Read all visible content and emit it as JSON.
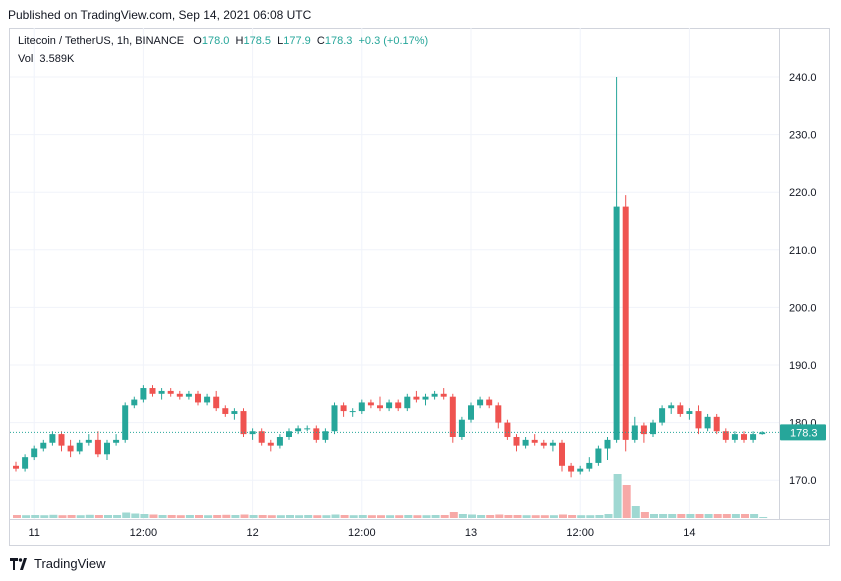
{
  "header": {
    "published": "Published on TradingView.com, Sep 14, 2021 06:08 UTC"
  },
  "legend": {
    "symbol": "Litecoin / TetherUS, 1h, BINANCE",
    "o_label": "O",
    "o_value": "178.0",
    "h_label": "H",
    "h_value": "178.5",
    "l_label": "L",
    "l_value": "177.9",
    "c_label": "C",
    "c_value": "178.3",
    "change": "+0.3 (+0.17%)",
    "vol_label": "Vol",
    "vol_value": "3.589K"
  },
  "footer": {
    "brand": "TradingView"
  },
  "colors": {
    "up": "#26a69a",
    "down": "#ef5350",
    "up_vol": "#9fd8d2",
    "down_vol": "#f7a9a7",
    "grid": "#f0f3fa"
  },
  "chart_data": {
    "type": "candlestick",
    "y_ticks": [
      "240.0",
      "230.0",
      "220.0",
      "210.0",
      "200.0",
      "190.0",
      "180.0",
      "170.0"
    ],
    "ylim": [
      164,
      245
    ],
    "x_ticks": [
      {
        "label": "11",
        "index": 2
      },
      {
        "label": "12:00",
        "index": 14
      },
      {
        "label": "12",
        "index": 26
      },
      {
        "label": "12:00",
        "index": 38
      },
      {
        "label": "13",
        "index": 50
      },
      {
        "label": "12:00",
        "index": 62
      },
      {
        "label": "14",
        "index": 74
      }
    ],
    "last_price": "178.3",
    "candles": [
      [
        172.5,
        173.2,
        171.5,
        172.0
      ],
      [
        172.0,
        174.5,
        171.5,
        174.0
      ],
      [
        174.0,
        176.0,
        173.5,
        175.5
      ],
      [
        175.5,
        177.0,
        175.0,
        176.5
      ],
      [
        176.5,
        178.5,
        176.0,
        178.0
      ],
      [
        178.0,
        178.5,
        175.0,
        176.0
      ],
      [
        176.0,
        177.0,
        174.0,
        175.0
      ],
      [
        175.0,
        177.0,
        174.5,
        176.5
      ],
      [
        176.5,
        178.0,
        176.0,
        177.0
      ],
      [
        177.0,
        178.5,
        174.0,
        174.5
      ],
      [
        174.5,
        177.0,
        173.5,
        176.5
      ],
      [
        176.5,
        178.0,
        176.0,
        177.0
      ],
      [
        177.0,
        183.5,
        176.5,
        183.0
      ],
      [
        183.0,
        184.5,
        182.5,
        184.0
      ],
      [
        184.0,
        186.5,
        183.5,
        186.0
      ],
      [
        186.0,
        186.5,
        184.5,
        185.0
      ],
      [
        185.0,
        186.0,
        184.0,
        185.5
      ],
      [
        185.5,
        186.0,
        184.5,
        185.0
      ],
      [
        185.0,
        185.5,
        184.0,
        184.5
      ],
      [
        184.5,
        185.5,
        184.0,
        185.0
      ],
      [
        185.0,
        185.5,
        183.0,
        183.5
      ],
      [
        183.5,
        185.0,
        183.0,
        184.5
      ],
      [
        184.5,
        185.5,
        182.0,
        182.5
      ],
      [
        182.5,
        183.0,
        181.0,
        181.5
      ],
      [
        181.5,
        182.5,
        180.5,
        182.0
      ],
      [
        182.0,
        182.5,
        177.5,
        178.0
      ],
      [
        178.0,
        179.0,
        177.0,
        178.5
      ],
      [
        178.5,
        179.0,
        176.0,
        176.5
      ],
      [
        176.5,
        177.0,
        175.0,
        176.0
      ],
      [
        176.0,
        178.0,
        175.5,
        177.5
      ],
      [
        177.5,
        179.0,
        177.0,
        178.5
      ],
      [
        178.5,
        179.5,
        178.0,
        179.0
      ],
      [
        179.0,
        179.5,
        178.5,
        179.0
      ],
      [
        179.0,
        179.5,
        176.5,
        177.0
      ],
      [
        177.0,
        179.0,
        176.5,
        178.5
      ],
      [
        178.5,
        183.5,
        178.0,
        183.0
      ],
      [
        183.0,
        183.5,
        181.0,
        182.0
      ],
      [
        182.0,
        182.5,
        181.0,
        182.0
      ],
      [
        182.0,
        184.0,
        181.5,
        183.5
      ],
      [
        183.5,
        184.0,
        182.5,
        183.0
      ],
      [
        183.0,
        184.5,
        182.0,
        182.5
      ],
      [
        182.5,
        184.0,
        182.0,
        183.5
      ],
      [
        183.5,
        184.0,
        182.0,
        182.5
      ],
      [
        182.5,
        185.0,
        182.0,
        184.5
      ],
      [
        184.5,
        185.5,
        183.5,
        184.0
      ],
      [
        184.0,
        185.0,
        183.0,
        184.5
      ],
      [
        184.5,
        185.5,
        184.0,
        185.0
      ],
      [
        185.0,
        186.0,
        184.0,
        184.5
      ],
      [
        184.5,
        185.0,
        176.5,
        177.5
      ],
      [
        177.5,
        181.0,
        177.0,
        180.5
      ],
      [
        180.5,
        183.5,
        180.0,
        183.0
      ],
      [
        183.0,
        184.5,
        182.5,
        184.0
      ],
      [
        184.0,
        184.5,
        182.5,
        183.0
      ],
      [
        183.0,
        183.5,
        179.0,
        180.0
      ],
      [
        180.0,
        180.5,
        177.0,
        177.5
      ],
      [
        177.5,
        178.0,
        175.0,
        176.0
      ],
      [
        176.0,
        177.5,
        175.5,
        177.0
      ],
      [
        177.0,
        178.0,
        176.0,
        176.5
      ],
      [
        176.5,
        177.0,
        175.5,
        176.0
      ],
      [
        176.0,
        177.0,
        175.0,
        176.5
      ],
      [
        176.5,
        177.0,
        171.5,
        172.5
      ],
      [
        172.5,
        173.0,
        170.5,
        171.5
      ],
      [
        171.5,
        172.5,
        171.0,
        172.0
      ],
      [
        172.0,
        174.0,
        171.5,
        173.0
      ],
      [
        173.0,
        176.0,
        172.5,
        175.5
      ],
      [
        175.5,
        177.5,
        173.5,
        177.0
      ],
      [
        177.0,
        240.0,
        176.5,
        217.5
      ],
      [
        217.5,
        219.5,
        175.0,
        177.0
      ],
      [
        177.0,
        181.0,
        176.5,
        179.5
      ],
      [
        179.5,
        180.0,
        176.5,
        178.0
      ],
      [
        178.0,
        180.5,
        177.5,
        180.0
      ],
      [
        180.0,
        183.0,
        179.5,
        182.5
      ],
      [
        182.5,
        183.5,
        181.5,
        183.0
      ],
      [
        183.0,
        183.5,
        181.0,
        181.5
      ],
      [
        181.5,
        182.5,
        180.5,
        182.0
      ],
      [
        182.0,
        183.0,
        178.0,
        179.0
      ],
      [
        179.0,
        181.5,
        178.5,
        181.0
      ],
      [
        181.0,
        181.5,
        178.0,
        178.5
      ],
      [
        178.5,
        179.0,
        176.5,
        177.0
      ],
      [
        177.0,
        178.5,
        176.5,
        178.0
      ],
      [
        178.0,
        178.5,
        176.5,
        177.0
      ],
      [
        177.0,
        178.5,
        176.5,
        178.0
      ],
      [
        178.0,
        178.5,
        177.9,
        178.3
      ]
    ],
    "volumes": [
      30,
      28,
      30,
      28,
      32,
      28,
      30,
      28,
      32,
      30,
      30,
      30,
      55,
      45,
      40,
      35,
      30,
      30,
      28,
      30,
      30,
      28,
      30,
      32,
      30,
      35,
      30,
      30,
      28,
      28,
      30,
      28,
      30,
      28,
      28,
      35,
      30,
      28,
      30,
      28,
      28,
      28,
      28,
      30,
      28,
      28,
      30,
      30,
      60,
      40,
      35,
      30,
      30,
      35,
      30,
      30,
      28,
      28,
      28,
      28,
      35,
      30,
      28,
      28,
      30,
      40,
      440,
      330,
      120,
      60,
      40,
      40,
      40,
      40,
      40,
      40,
      40,
      40,
      40,
      40,
      40,
      40,
      10
    ]
  }
}
